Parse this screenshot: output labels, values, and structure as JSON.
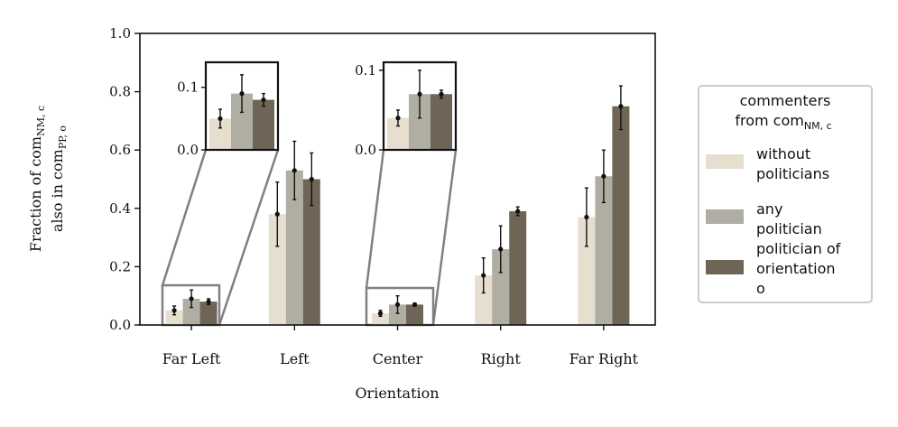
{
  "chart_data": {
    "type": "bar",
    "xlabel": "Orientation",
    "ylabel": {
      "line1_prefix": "Fraction of com",
      "line1_sub": "NM, c",
      "line2_prefix": "also in com",
      "line2_sub": "PP, o"
    },
    "ylim": [
      0,
      1
    ],
    "yticks": [
      "0.0",
      "0.2",
      "0.4",
      "0.6",
      "0.8",
      "1.0"
    ],
    "categories": [
      "Far Left",
      "Left",
      "Center",
      "Right",
      "Far Right"
    ],
    "series": [
      {
        "name": "without politicians",
        "legend_lines": [
          "without",
          "politicians"
        ],
        "color": "#e6dece",
        "values": [
          0.05,
          0.38,
          0.04,
          0.17,
          0.37
        ],
        "err_low": [
          0.035,
          0.27,
          0.03,
          0.11,
          0.27
        ],
        "err_high": [
          0.065,
          0.49,
          0.05,
          0.23,
          0.47
        ]
      },
      {
        "name": "any politician",
        "legend_lines": [
          "any",
          "politician"
        ],
        "color": "#b0ada2",
        "values": [
          0.09,
          0.53,
          0.07,
          0.26,
          0.51
        ],
        "err_low": [
          0.06,
          0.43,
          0.04,
          0.18,
          0.42
        ],
        "err_high": [
          0.12,
          0.63,
          0.1,
          0.34,
          0.6
        ]
      },
      {
        "name": "politician of orientation o",
        "legend_lines": [
          "politician of",
          "orientation",
          "o"
        ],
        "color": "#6e6557",
        "values": [
          0.08,
          0.5,
          0.07,
          0.39,
          0.75
        ],
        "err_low": [
          0.07,
          0.41,
          0.065,
          0.375,
          0.67
        ],
        "err_high": [
          0.09,
          0.59,
          0.075,
          0.405,
          0.82
        ]
      }
    ],
    "legend": {
      "title_line1": "commenters",
      "title_line2_prefix": "from com",
      "title_line2_sub": "NM, c",
      "placement": "right, outside"
    },
    "insets": [
      {
        "category": "Far Left",
        "ylim": [
          0,
          0.14
        ],
        "yticks": [
          "0.0",
          "0.1"
        ]
      },
      {
        "category": "Center",
        "ylim": [
          0,
          0.11
        ],
        "yticks": [
          "0.0",
          "0.1"
        ]
      }
    ]
  }
}
